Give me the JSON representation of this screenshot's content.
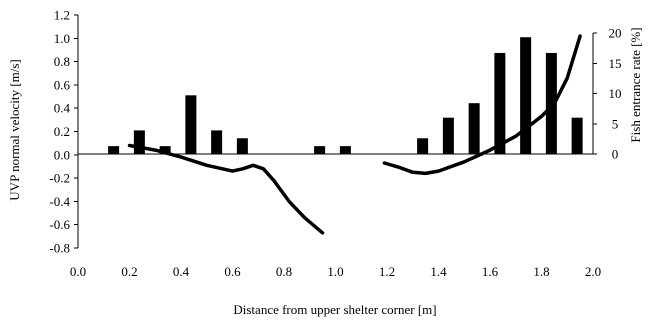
{
  "chart_data": {
    "type": "bar+line",
    "xlabel": "Distance from upper shelter corner [m]",
    "ylabel_left": "UVP normal velocity [m/s]",
    "ylabel_right": "Fish entrance rate [%]",
    "x_ticks": [
      "0.0",
      "0.2",
      "0.4",
      "0.6",
      "0.8",
      "1.0",
      "1.2",
      "1.4",
      "1.6",
      "1.8",
      "2.0"
    ],
    "y_left_ticks": [
      "-0.8",
      "-0.6",
      "-0.4",
      "-0.2",
      "0.0",
      "0.2",
      "0.4",
      "0.6",
      "0.8",
      "1.0",
      "1.2"
    ],
    "y_right_ticks": [
      "0",
      "5",
      "10",
      "15",
      "20"
    ],
    "xlim": [
      0,
      2
    ],
    "ylim_left": [
      -0.8,
      1.2
    ],
    "ylim_right": [
      0,
      20
    ],
    "bars": {
      "axis": "right",
      "x": [
        0.15,
        0.25,
        0.35,
        0.45,
        0.55,
        0.65,
        0.95,
        1.05,
        1.35,
        1.45,
        1.55,
        1.65,
        1.75,
        1.85,
        1.95
      ],
      "values": [
        1.3,
        3.9,
        1.3,
        9.7,
        3.9,
        2.6,
        1.3,
        1.3,
        2.6,
        6.0,
        8.4,
        16.7,
        19.3,
        16.7,
        6.0
      ]
    },
    "line": {
      "axis": "left",
      "segments": [
        [
          [
            0.2,
            0.08
          ],
          [
            0.3,
            0.04
          ],
          [
            0.4,
            -0.02
          ],
          [
            0.5,
            -0.09
          ],
          [
            0.6,
            -0.14
          ],
          [
            0.64,
            -0.12
          ],
          [
            0.68,
            -0.09
          ],
          [
            0.72,
            -0.12
          ],
          [
            0.76,
            -0.22
          ],
          [
            0.82,
            -0.4
          ],
          [
            0.88,
            -0.54
          ],
          [
            0.95,
            -0.67
          ]
        ],
        [
          [
            1.19,
            -0.07
          ],
          [
            1.25,
            -0.11
          ],
          [
            1.3,
            -0.15
          ],
          [
            1.35,
            -0.16
          ],
          [
            1.4,
            -0.14
          ],
          [
            1.5,
            -0.06
          ],
          [
            1.6,
            0.04
          ],
          [
            1.7,
            0.16
          ],
          [
            1.8,
            0.33
          ],
          [
            1.85,
            0.44
          ],
          [
            1.9,
            0.66
          ],
          [
            1.95,
            1.02
          ]
        ]
      ]
    },
    "grid": false,
    "legend": "none"
  }
}
